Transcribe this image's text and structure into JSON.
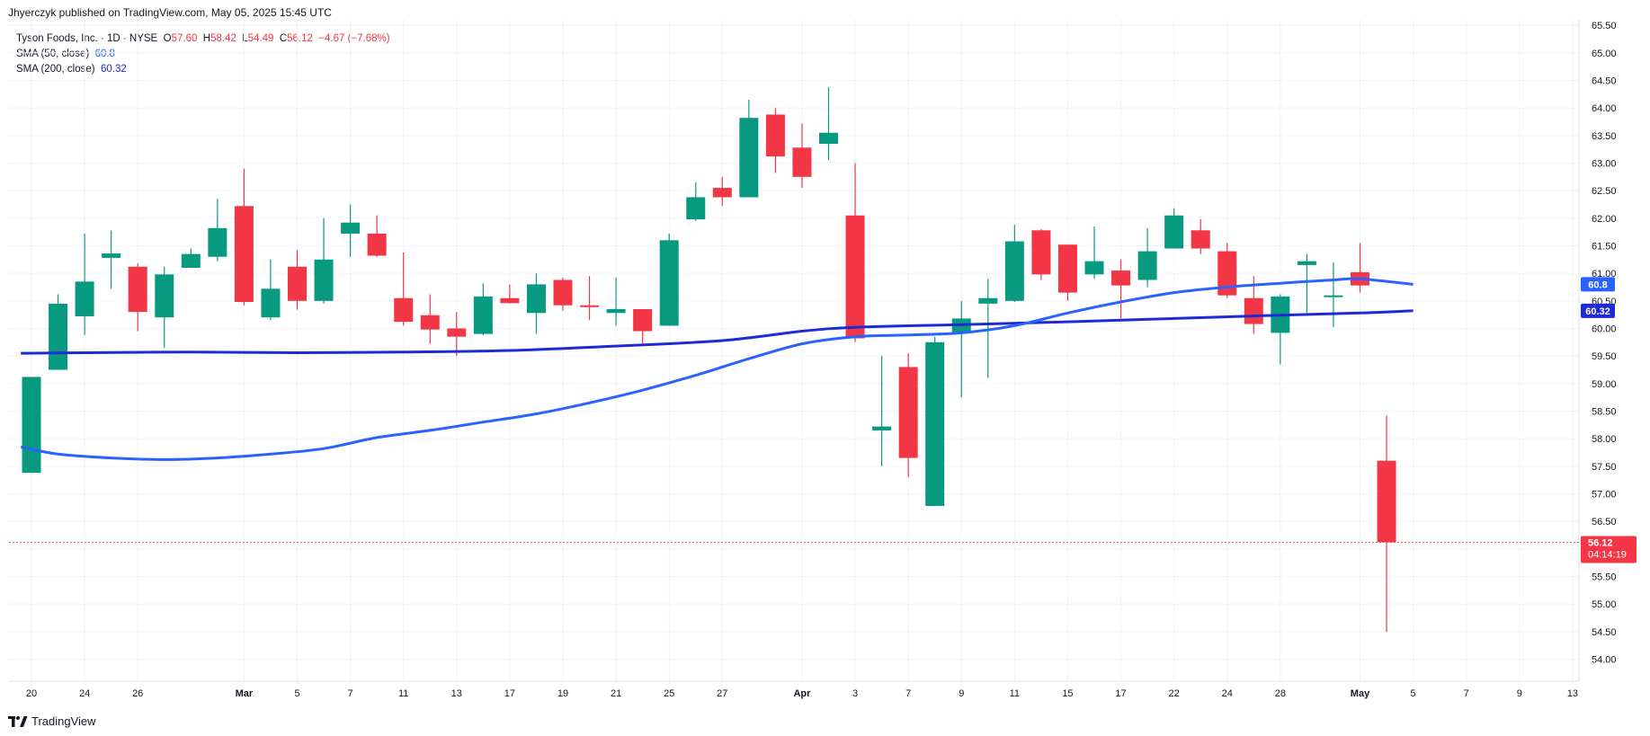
{
  "header": {
    "published": "Jhyerczyk published on TradingView.com, May 05, 2025 15:45 UTC"
  },
  "legend": {
    "symbol": "Tyson Foods, Inc. · 1D · NYSE",
    "o_label": "O",
    "o_value": "57.60",
    "h_label": "H",
    "h_value": "58.42",
    "l_label": "L",
    "l_value": "54.49",
    "c_label": "C",
    "c_value": "56.12",
    "change": "−4.67 (−7.68%)",
    "sma50_label": "SMA (50, close)",
    "sma50_value": "60.8",
    "sma200_label": "SMA (200, close)",
    "sma200_value": "60.32"
  },
  "price_labels": {
    "last_price": "56.12",
    "countdown": "04:14:19",
    "sma50": "60.8",
    "sma200": "60.32"
  },
  "footer": {
    "brand": "TradingView"
  },
  "colors": {
    "up": "#089981",
    "down": "#f23645",
    "sma50": "#2962ff",
    "sma200": "#1e2ad6"
  },
  "chart_data": {
    "type": "candlestick",
    "y_axis": {
      "range": [
        53.6,
        65.6
      ],
      "ticks": [
        54.0,
        54.5,
        55.0,
        55.5,
        56.0,
        56.5,
        57.0,
        57.5,
        58.0,
        58.5,
        59.0,
        59.5,
        60.0,
        60.5,
        61.0,
        61.5,
        62.0,
        62.5,
        63.0,
        63.5,
        64.0,
        64.5,
        65.0,
        65.5
      ]
    },
    "x_axis": {
      "ticks": [
        {
          "label": "20",
          "i": 0
        },
        {
          "label": "24",
          "i": 2
        },
        {
          "label": "26",
          "i": 4
        },
        {
          "label": "Mar",
          "i": 8,
          "bold": true
        },
        {
          "label": "5",
          "i": 10
        },
        {
          "label": "7",
          "i": 12
        },
        {
          "label": "11",
          "i": 14
        },
        {
          "label": "13",
          "i": 16
        },
        {
          "label": "17",
          "i": 18
        },
        {
          "label": "19",
          "i": 20
        },
        {
          "label": "21",
          "i": 22
        },
        {
          "label": "25",
          "i": 24
        },
        {
          "label": "27",
          "i": 26
        },
        {
          "label": "Apr",
          "i": 29,
          "bold": true
        },
        {
          "label": "3",
          "i": 31
        },
        {
          "label": "7",
          "i": 33
        },
        {
          "label": "9",
          "i": 35
        },
        {
          "label": "11",
          "i": 37
        },
        {
          "label": "15",
          "i": 39
        },
        {
          "label": "17",
          "i": 41
        },
        {
          "label": "22",
          "i": 43
        },
        {
          "label": "24",
          "i": 45
        },
        {
          "label": "28",
          "i": 47
        },
        {
          "label": "May",
          "i": 50,
          "bold": true
        },
        {
          "label": "5",
          "i": 52
        },
        {
          "label": "7",
          "i": 54
        },
        {
          "label": "9",
          "i": 56
        },
        {
          "label": "13",
          "i": 58
        }
      ]
    },
    "candles": [
      {
        "i": 0,
        "o": 57.38,
        "h": 59.12,
        "l": 57.38,
        "c": 59.12
      },
      {
        "i": 1,
        "o": 59.25,
        "h": 60.62,
        "l": 59.25,
        "c": 60.45
      },
      {
        "i": 2,
        "o": 60.22,
        "h": 61.72,
        "l": 59.88,
        "c": 60.85
      },
      {
        "i": 3,
        "o": 61.28,
        "h": 61.78,
        "l": 60.72,
        "c": 61.36
      },
      {
        "i": 4,
        "o": 61.12,
        "h": 61.18,
        "l": 59.95,
        "c": 60.3
      },
      {
        "i": 5,
        "o": 60.2,
        "h": 61.12,
        "l": 59.65,
        "c": 60.98
      },
      {
        "i": 6,
        "o": 61.1,
        "h": 61.45,
        "l": 61.1,
        "c": 61.35
      },
      {
        "i": 7,
        "o": 61.3,
        "h": 62.35,
        "l": 61.22,
        "c": 61.82
      },
      {
        "i": 8,
        "o": 62.22,
        "h": 62.9,
        "l": 60.42,
        "c": 60.48
      },
      {
        "i": 9,
        "o": 60.2,
        "h": 61.25,
        "l": 60.15,
        "c": 60.72
      },
      {
        "i": 10,
        "o": 61.12,
        "h": 61.42,
        "l": 60.34,
        "c": 60.5
      },
      {
        "i": 11,
        "o": 60.5,
        "h": 62.0,
        "l": 60.45,
        "c": 61.25
      },
      {
        "i": 12,
        "o": 61.72,
        "h": 62.25,
        "l": 61.3,
        "c": 61.92
      },
      {
        "i": 13,
        "o": 61.72,
        "h": 62.05,
        "l": 61.3,
        "c": 61.32
      },
      {
        "i": 14,
        "o": 60.55,
        "h": 61.38,
        "l": 60.05,
        "c": 60.12
      },
      {
        "i": 15,
        "o": 60.24,
        "h": 60.62,
        "l": 59.72,
        "c": 59.98
      },
      {
        "i": 16,
        "o": 60.0,
        "h": 60.3,
        "l": 59.5,
        "c": 59.85
      },
      {
        "i": 17,
        "o": 59.9,
        "h": 60.82,
        "l": 59.88,
        "c": 60.58
      },
      {
        "i": 18,
        "o": 60.55,
        "h": 60.8,
        "l": 60.45,
        "c": 60.46
      },
      {
        "i": 19,
        "o": 60.28,
        "h": 61.0,
        "l": 59.9,
        "c": 60.8
      },
      {
        "i": 20,
        "o": 60.88,
        "h": 60.92,
        "l": 60.32,
        "c": 60.42
      },
      {
        "i": 21,
        "o": 60.42,
        "h": 60.95,
        "l": 60.15,
        "c": 60.4
      },
      {
        "i": 22,
        "o": 60.28,
        "h": 60.92,
        "l": 60.05,
        "c": 60.35
      },
      {
        "i": 23,
        "o": 60.35,
        "h": 60.35,
        "l": 59.72,
        "c": 59.95
      },
      {
        "i": 24,
        "o": 60.05,
        "h": 61.72,
        "l": 60.05,
        "c": 61.6
      },
      {
        "i": 25,
        "o": 61.98,
        "h": 62.65,
        "l": 61.95,
        "c": 62.38
      },
      {
        "i": 26,
        "o": 62.55,
        "h": 62.75,
        "l": 62.22,
        "c": 62.38
      },
      {
        "i": 27,
        "o": 62.38,
        "h": 64.15,
        "l": 62.38,
        "c": 63.82
      },
      {
        "i": 28,
        "o": 63.88,
        "h": 64.0,
        "l": 62.82,
        "c": 63.12
      },
      {
        "i": 29,
        "o": 63.28,
        "h": 63.72,
        "l": 62.55,
        "c": 62.75
      },
      {
        "i": 30,
        "o": 63.35,
        "h": 64.38,
        "l": 63.05,
        "c": 63.55
      },
      {
        "i": 31,
        "o": 62.05,
        "h": 63.0,
        "l": 59.75,
        "c": 59.82
      },
      {
        "i": 32,
        "o": 58.15,
        "h": 59.5,
        "l": 57.5,
        "c": 58.22
      },
      {
        "i": 33,
        "o": 59.3,
        "h": 59.55,
        "l": 57.3,
        "c": 57.65
      },
      {
        "i": 34,
        "o": 56.78,
        "h": 59.85,
        "l": 56.78,
        "c": 59.75
      },
      {
        "i": 35,
        "o": 59.92,
        "h": 60.5,
        "l": 58.75,
        "c": 60.18
      },
      {
        "i": 36,
        "o": 60.45,
        "h": 60.9,
        "l": 59.1,
        "c": 60.55
      },
      {
        "i": 37,
        "o": 60.5,
        "h": 61.88,
        "l": 60.48,
        "c": 61.58
      },
      {
        "i": 38,
        "o": 61.78,
        "h": 61.8,
        "l": 60.88,
        "c": 60.98
      },
      {
        "i": 39,
        "o": 61.52,
        "h": 61.52,
        "l": 60.5,
        "c": 60.65
      },
      {
        "i": 40,
        "o": 60.98,
        "h": 61.85,
        "l": 60.9,
        "c": 61.22
      },
      {
        "i": 41,
        "o": 61.05,
        "h": 61.25,
        "l": 60.18,
        "c": 60.78
      },
      {
        "i": 42,
        "o": 60.88,
        "h": 61.82,
        "l": 60.75,
        "c": 61.4
      },
      {
        "i": 43,
        "o": 61.45,
        "h": 62.18,
        "l": 61.45,
        "c": 62.05
      },
      {
        "i": 44,
        "o": 61.78,
        "h": 61.98,
        "l": 61.35,
        "c": 61.45
      },
      {
        "i": 45,
        "o": 61.4,
        "h": 61.55,
        "l": 60.55,
        "c": 60.6
      },
      {
        "i": 46,
        "o": 60.55,
        "h": 60.95,
        "l": 59.9,
        "c": 60.08
      },
      {
        "i": 47,
        "o": 59.92,
        "h": 60.62,
        "l": 59.35,
        "c": 60.58
      },
      {
        "i": 48,
        "o": 61.15,
        "h": 61.35,
        "l": 60.28,
        "c": 61.22
      },
      {
        "i": 49,
        "o": 60.6,
        "h": 61.2,
        "l": 60.02,
        "c": 60.6
      },
      {
        "i": 50,
        "o": 61.02,
        "h": 61.55,
        "l": 60.65,
        "c": 60.78
      },
      {
        "i": 51,
        "o": 57.6,
        "h": 58.42,
        "l": 54.49,
        "c": 56.12
      }
    ],
    "sma50": [
      [
        -0.4,
        57.85
      ],
      [
        1,
        57.72
      ],
      [
        3,
        57.65
      ],
      [
        5,
        57.62
      ],
      [
        7,
        57.65
      ],
      [
        9,
        57.72
      ],
      [
        11,
        57.82
      ],
      [
        13,
        58.02
      ],
      [
        15,
        58.15
      ],
      [
        17,
        58.3
      ],
      [
        19,
        58.45
      ],
      [
        21,
        58.65
      ],
      [
        23,
        58.88
      ],
      [
        25,
        59.15
      ],
      [
        27,
        59.45
      ],
      [
        29,
        59.72
      ],
      [
        31,
        59.85
      ],
      [
        33,
        59.88
      ],
      [
        35,
        59.92
      ],
      [
        37,
        60.05
      ],
      [
        39,
        60.28
      ],
      [
        41,
        60.48
      ],
      [
        43,
        60.65
      ],
      [
        45,
        60.75
      ],
      [
        47,
        60.82
      ],
      [
        49,
        60.88
      ],
      [
        50,
        60.9
      ],
      [
        52,
        60.8
      ]
    ],
    "sma200": [
      [
        -0.4,
        59.55
      ],
      [
        2,
        59.56
      ],
      [
        6,
        59.57
      ],
      [
        10,
        59.56
      ],
      [
        14,
        59.57
      ],
      [
        18,
        59.6
      ],
      [
        22,
        59.68
      ],
      [
        26,
        59.78
      ],
      [
        29,
        59.95
      ],
      [
        31,
        60.02
      ],
      [
        35,
        60.07
      ],
      [
        39,
        60.12
      ],
      [
        43,
        60.18
      ],
      [
        47,
        60.24
      ],
      [
        50,
        60.28
      ],
      [
        52,
        60.32
      ]
    ]
  }
}
